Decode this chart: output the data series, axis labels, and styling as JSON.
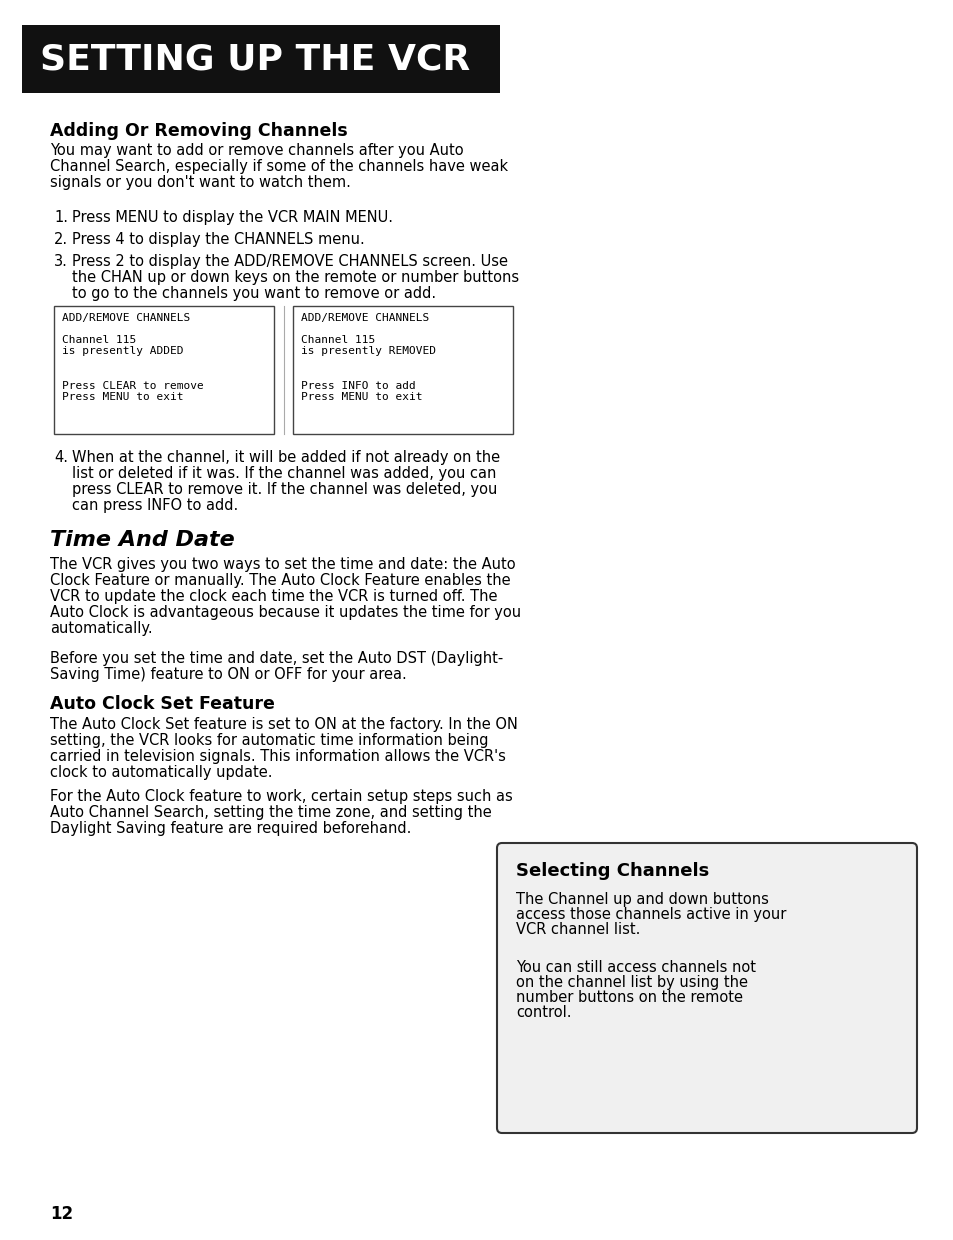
{
  "page_bg": "#ffffff",
  "header_bg": "#111111",
  "header_text": "SETTING UP THE VCR",
  "header_text_color": "#ffffff",
  "header_font_size": 26,
  "section1_title": "Adding Or Removing Channels",
  "section1_intro": "You may want to add or remove channels after you Auto\nChannel Search, especially if some of the channels have weak\nsignals or you don't want to watch them.",
  "step1": "Press MENU to display the VCR MAIN MENU.",
  "step2": "Press 4 to display the CHANNELS menu.",
  "step3a": "Press 2 to display the ADD/REMOVE CHANNELS screen. Use",
  "step3b": "the CHAN up or down keys on the remote or number buttons",
  "step3c": "to go to the channels you want to remove or add.",
  "box1_line1": "ADD/REMOVE CHANNELS",
  "box1_line2": "Channel 115",
  "box1_line3": "is presently ADDED",
  "box1_line4": "Press CLEAR to remove",
  "box1_line5": "Press MENU to exit",
  "box2_line1": "ADD/REMOVE CHANNELS",
  "box2_line2": "Channel 115",
  "box2_line3": "is presently REMOVED",
  "box2_line4": "Press INFO to add",
  "box2_line5": "Press MENU to exit",
  "step4a": "When at the channel, it will be added if not already on the",
  "step4b": "list or deleted if it was. If the channel was added, you can",
  "step4c": "press CLEAR to remove it. If the channel was deleted, you",
  "step4d": "can press INFO to add.",
  "section2_title": "Time And Date",
  "section2_para1a": "The VCR gives you two ways to set the time and date: the Auto",
  "section2_para1b": "Clock Feature or manually. The Auto Clock Feature enables the",
  "section2_para1c": "VCR to update the clock each time the VCR is turned off. The",
  "section2_para1d": "Auto Clock is advantageous because it updates the time for you",
  "section2_para1e": "automatically.",
  "section2_para2a": "Before you set the time and date, set the Auto DST (Daylight-",
  "section2_para2b": "Saving Time) feature to ON or OFF for your area.",
  "section3_title": "Auto Clock Set Feature",
  "section3_para1a": "The Auto Clock Set feature is set to ON at the factory. In the ON",
  "section3_para1b": "setting, the VCR looks for automatic time information being",
  "section3_para1c": "carried in television signals. This information allows the VCR's",
  "section3_para1d": "clock to automatically update.",
  "section3_para2a": "For the Auto Clock feature to work, certain setup steps such as",
  "section3_para2b": "Auto Channel Search, setting the time zone, and setting the",
  "section3_para2c": "Daylight Saving feature are required beforehand.",
  "sidebar_title": "Selecting Channels",
  "sidebar_p1a": "The Channel up and down buttons",
  "sidebar_p1b": "access those channels active in your",
  "sidebar_p1c": "VCR channel list.",
  "sidebar_p2a": "You can still access channels not",
  "sidebar_p2b": "on the channel list by using the",
  "sidebar_p2c": "number buttons on the remote",
  "sidebar_p2d": "control.",
  "page_number": "12",
  "body_font_size": 10.5,
  "step_font_size": 10.5,
  "section_title_font_size": 12.5,
  "mono_font_size": 8.0,
  "sidebar_title_font_size": 13.0,
  "sidebar_body_font_size": 10.5
}
